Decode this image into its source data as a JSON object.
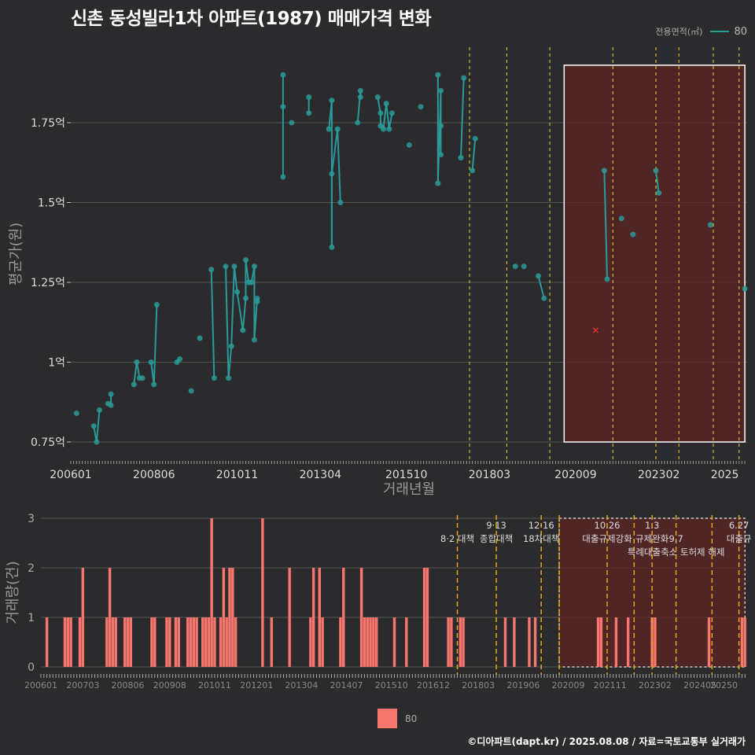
{
  "title": "신촌 동성빌라1차 아파트(1987) 매매가격 변화",
  "credit": "©디아파트(dapt.kr) / 2025.08.08 / 자료=국토교통부 실거래가",
  "legend_top": {
    "label": "전용면적(㎡)",
    "item": "80"
  },
  "legend_bottom": {
    "item": "80"
  },
  "colors": {
    "background": "#2b2b2d",
    "line": "#2a9a98",
    "bar": "#f8766d",
    "vline": "#e8d62a",
    "vline2": "#e6a614",
    "highlight": "#5a2424",
    "cross": "#e83030"
  },
  "chart_data": [
    {
      "type": "line",
      "xlabel": "거래년월",
      "ylabel": "평균가(원)",
      "x_ticks": [
        "200601",
        "200806",
        "201011",
        "201304",
        "201510",
        "201803",
        "202009",
        "202302",
        "2025"
      ],
      "y_ticks": [
        "0.75억",
        "1억",
        "1.25억",
        "1.5억",
        "1.75억"
      ],
      "ylim": [
        0.7,
        1.95
      ],
      "grid": true,
      "vlines": [
        "2017-08",
        "2018-09",
        "2019-12",
        "2021-10",
        "2023-01",
        "2023-09",
        "2024-09",
        "2025-06"
      ],
      "highlight_box": {
        "x_start": "2020-05",
        "x_end": "2025-08",
        "y_start": 0.75,
        "y_end": 1.93
      },
      "cross_point": {
        "x": "2021-04",
        "y": 1.1
      },
      "series": [
        {
          "name": "80",
          "points": [
            [
              "2006-03",
              0.84
            ],
            [
              "2006-09",
              0.8
            ],
            [
              "2006-10",
              0.75
            ],
            [
              "2006-11",
              0.85
            ],
            [
              "2007-02",
              0.87
            ],
            [
              "2007-03",
              0.865
            ],
            [
              "2007-03",
              0.9
            ],
            [
              "2007-11",
              0.93
            ],
            [
              "2007-12",
              1.0
            ],
            [
              "2008-01",
              0.95
            ],
            [
              "2008-02",
              0.95
            ],
            [
              "2008-05",
              1.0
            ],
            [
              "2008-06",
              0.93
            ],
            [
              "2008-07",
              1.18
            ],
            [
              "2009-02",
              1.0
            ],
            [
              "2009-03",
              1.01
            ],
            [
              "2009-07",
              0.91
            ],
            [
              "2009-10",
              1.075
            ],
            [
              "2010-02",
              1.29
            ],
            [
              "2010-03",
              0.95
            ],
            [
              "2010-07",
              1.3
            ],
            [
              "2010-08",
              0.95
            ],
            [
              "2010-09",
              1.05
            ],
            [
              "2010-10",
              1.3
            ],
            [
              "2010-11",
              1.22
            ],
            [
              "2011-01",
              1.1
            ],
            [
              "2011-02",
              1.2
            ],
            [
              "2011-02",
              1.32
            ],
            [
              "2011-03",
              1.25
            ],
            [
              "2011-04",
              1.25
            ],
            [
              "2011-05",
              1.3
            ],
            [
              "2011-05",
              1.07
            ],
            [
              "2011-06",
              1.2
            ],
            [
              "2011-06",
              1.19
            ],
            [
              "2012-03",
              1.9
            ],
            [
              "2012-03",
              1.8
            ],
            [
              "2012-03",
              1.58
            ],
            [
              "2012-06",
              1.75
            ],
            [
              "2012-12",
              1.83
            ],
            [
              "2012-12",
              1.78
            ],
            [
              "2013-07",
              1.73
            ],
            [
              "2013-08",
              1.82
            ],
            [
              "2013-08",
              1.36
            ],
            [
              "2013-08",
              1.59
            ],
            [
              "2013-10",
              1.73
            ],
            [
              "2013-11",
              1.5
            ],
            [
              "2014-05",
              1.75
            ],
            [
              "2014-06",
              1.85
            ],
            [
              "2014-06",
              1.83
            ],
            [
              "2014-12",
              1.83
            ],
            [
              "2015-01",
              1.78
            ],
            [
              "2015-01",
              1.74
            ],
            [
              "2015-02",
              1.73
            ],
            [
              "2015-03",
              1.81
            ],
            [
              "2015-04",
              1.73
            ],
            [
              "2015-05",
              1.78
            ],
            [
              "2015-11",
              1.68
            ],
            [
              "2016-03",
              1.8
            ],
            [
              "2016-09",
              1.9
            ],
            [
              "2016-09",
              1.56
            ],
            [
              "2016-10",
              1.85
            ],
            [
              "2016-10",
              1.65
            ],
            [
              "2016-10",
              1.74
            ],
            [
              "2017-05",
              1.64
            ],
            [
              "2017-06",
              1.89
            ],
            [
              "2017-09",
              1.6
            ],
            [
              "2017-10",
              1.7
            ],
            [
              "2018-12",
              1.3
            ],
            [
              "2019-03",
              1.3
            ],
            [
              "2019-08",
              1.27
            ],
            [
              "2019-10",
              1.2
            ],
            [
              "2021-07",
              1.6
            ],
            [
              "2021-08",
              1.26
            ],
            [
              "2022-01",
              1.45
            ],
            [
              "2022-05",
              1.4
            ],
            [
              "2023-01",
              1.6
            ],
            [
              "2023-02",
              1.53
            ],
            [
              "2024-08",
              1.43
            ],
            [
              "2025-08",
              1.23
            ]
          ]
        }
      ]
    },
    {
      "type": "bar",
      "ylabel": "거래량(건)",
      "x_ticks": [
        "200601",
        "200703",
        "200806",
        "200908",
        "201011",
        "201201",
        "201304",
        "201407",
        "201510",
        "201612",
        "201803",
        "201906",
        "202009",
        "202111",
        "202302",
        "202405",
        "20250"
      ],
      "y_ticks": [
        "0",
        "1",
        "2",
        "3"
      ],
      "ylim": [
        0,
        3
      ],
      "grid": true,
      "vlines": [
        "2017-08",
        "2018-09",
        "2019-12",
        "2020-06",
        "2021-10",
        "2022-07",
        "2023-01",
        "2023-09",
        "2024-09",
        "2025-06"
      ],
      "highlight_box": {
        "x_start": "2020-06",
        "x_end": "2025-08",
        "y_start": 0,
        "y_end": 3
      },
      "annotations": [
        {
          "x": "2017-08",
          "text": "8·2 대책",
          "row": 1
        },
        {
          "x": "2018-09",
          "text": "9·13",
          "row": 0
        },
        {
          "x": "2018-09",
          "text": "종합대책",
          "row": 1
        },
        {
          "x": "2019-12",
          "text": "12·16",
          "row": 0
        },
        {
          "x": "2019-12",
          "text": "18차대책",
          "row": 1
        },
        {
          "x": "2021-10",
          "text": "10.26",
          "row": 0
        },
        {
          "x": "2021-10",
          "text": "대출규제강화",
          "row": 1
        },
        {
          "x": "2023-01",
          "text": "1.3",
          "row": 0
        },
        {
          "x": "2023-01",
          "text": "규제완화",
          "row": 1
        },
        {
          "x": "2023-09",
          "text": "9.7",
          "row": 1
        },
        {
          "x": "2023-09",
          "text": "특례대출축소 토허제 해제",
          "row": 2
        },
        {
          "x": "2025-06",
          "text": "6.27",
          "row": 0
        },
        {
          "x": "2025-06",
          "text": "대출규",
          "row": 1
        }
      ],
      "series": [
        {
          "name": "80",
          "bars": [
            [
              "2006-03",
              1
            ],
            [
              "2006-09",
              1
            ],
            [
              "2006-10",
              1
            ],
            [
              "2006-11",
              1
            ],
            [
              "2007-02",
              1
            ],
            [
              "2007-03",
              2
            ],
            [
              "2007-11",
              1
            ],
            [
              "2007-12",
              2
            ],
            [
              "2008-01",
              1
            ],
            [
              "2008-02",
              1
            ],
            [
              "2008-05",
              1
            ],
            [
              "2008-06",
              1
            ],
            [
              "2008-07",
              1
            ],
            [
              "2009-02",
              1
            ],
            [
              "2009-03",
              1
            ],
            [
              "2009-07",
              1
            ],
            [
              "2009-08",
              1
            ],
            [
              "2009-10",
              1
            ],
            [
              "2009-11",
              1
            ],
            [
              "2010-02",
              1
            ],
            [
              "2010-03",
              1
            ],
            [
              "2010-04",
              1
            ],
            [
              "2010-05",
              1
            ],
            [
              "2010-07",
              1
            ],
            [
              "2010-08",
              1
            ],
            [
              "2010-09",
              1
            ],
            [
              "2010-10",
              3
            ],
            [
              "2010-11",
              1
            ],
            [
              "2011-01",
              1
            ],
            [
              "2011-02",
              2
            ],
            [
              "2011-03",
              1
            ],
            [
              "2011-04",
              2
            ],
            [
              "2011-05",
              2
            ],
            [
              "2011-06",
              1
            ],
            [
              "2012-03",
              3
            ],
            [
              "2012-06",
              1
            ],
            [
              "2012-12",
              2
            ],
            [
              "2013-07",
              1
            ],
            [
              "2013-08",
              2
            ],
            [
              "2013-10",
              2
            ],
            [
              "2013-11",
              1
            ],
            [
              "2014-05",
              1
            ],
            [
              "2014-06",
              2
            ],
            [
              "2014-12",
              2
            ],
            [
              "2015-01",
              1
            ],
            [
              "2015-02",
              1
            ],
            [
              "2015-03",
              1
            ],
            [
              "2015-04",
              1
            ],
            [
              "2015-05",
              1
            ],
            [
              "2015-11",
              1
            ],
            [
              "2016-03",
              1
            ],
            [
              "2016-09",
              2
            ],
            [
              "2016-10",
              2
            ],
            [
              "2017-05",
              1
            ],
            [
              "2017-06",
              1
            ],
            [
              "2017-09",
              1
            ],
            [
              "2017-10",
              1
            ],
            [
              "2018-12",
              1
            ],
            [
              "2019-03",
              1
            ],
            [
              "2019-08",
              1
            ],
            [
              "2019-10",
              1
            ],
            [
              "2021-07",
              1
            ],
            [
              "2021-08",
              1
            ],
            [
              "2022-01",
              1
            ],
            [
              "2022-05",
              1
            ],
            [
              "2023-01",
              1
            ],
            [
              "2023-02",
              1
            ],
            [
              "2024-08",
              1
            ],
            [
              "2025-07",
              1
            ],
            [
              "2025-08",
              1
            ]
          ]
        }
      ]
    }
  ]
}
